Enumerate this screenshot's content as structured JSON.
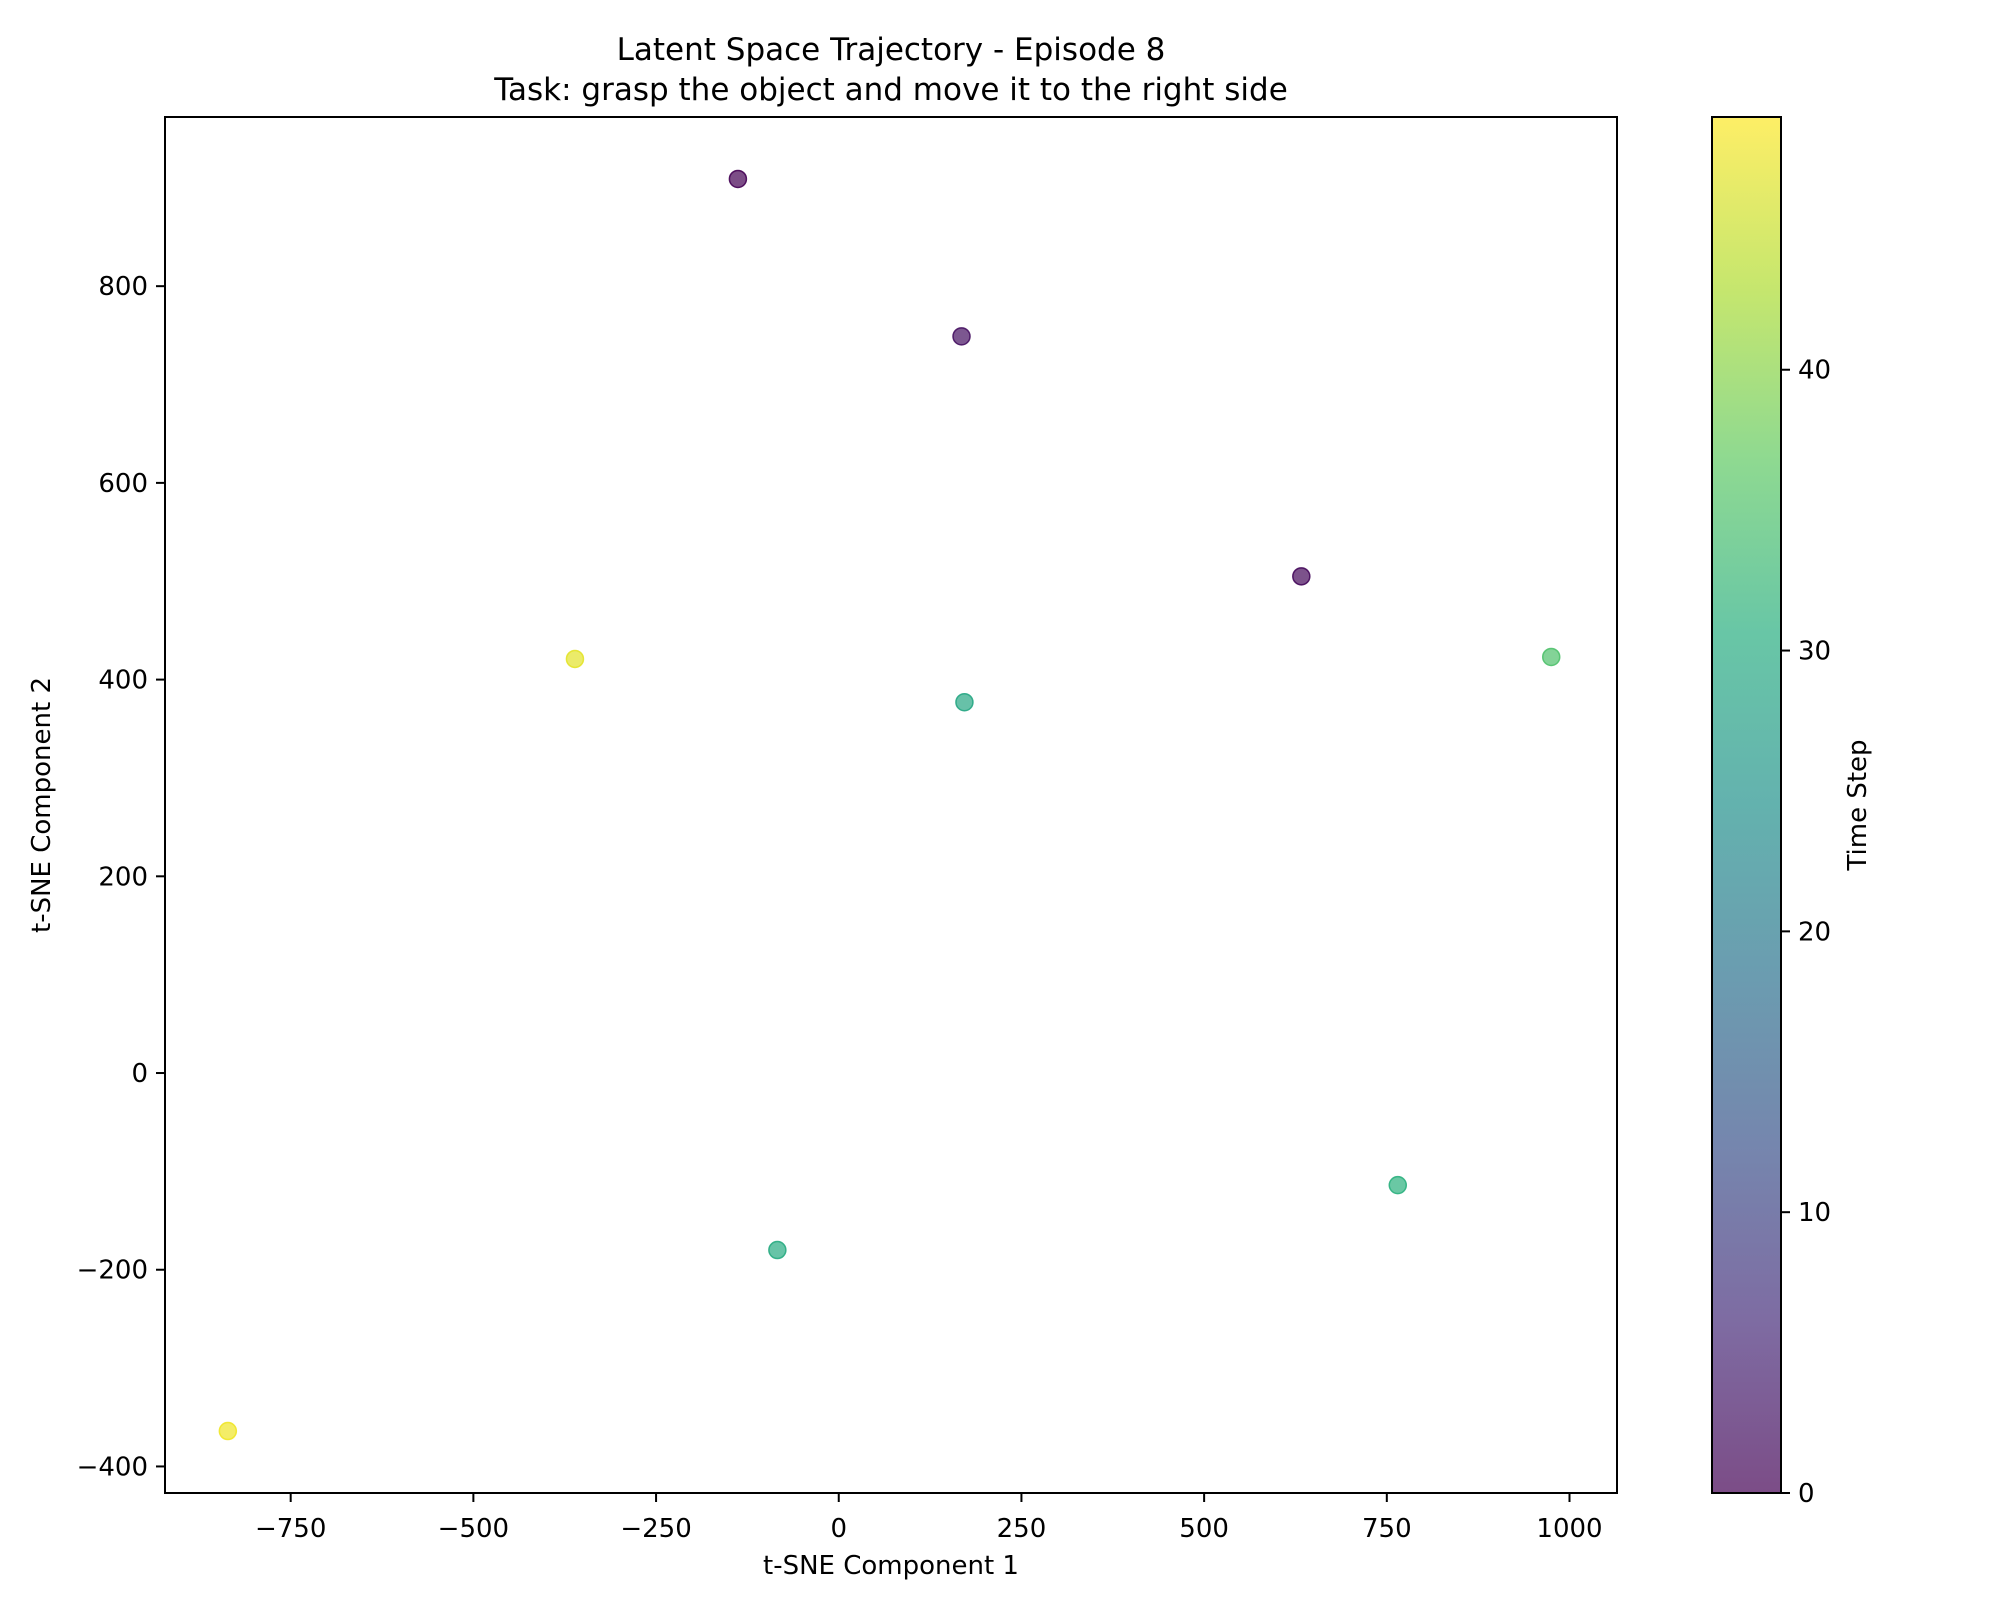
{
  "chart_data": {
    "type": "scatter",
    "title": "Latent Space Trajectory - Episode 8",
    "subtitle": "Task: grasp the object and move it to the right side",
    "xlabel": "t-SNE Component 1",
    "ylabel": "t-SNE Component 2",
    "xlim": [
      -922,
      1065
    ],
    "ylim": [
      -427,
      972
    ],
    "xticks": [
      -750,
      -500,
      -250,
      0,
      250,
      500,
      750,
      1000
    ],
    "xtick_labels": [
      "−750",
      "−500",
      "−250",
      "0",
      "250",
      "500",
      "750",
      "1000"
    ],
    "yticks": [
      -400,
      -200,
      0,
      200,
      400,
      600,
      800
    ],
    "ytick_labels": [
      "−400",
      "−200",
      "0",
      "200",
      "400",
      "600",
      "800"
    ],
    "grid": false,
    "colorbar": {
      "label": "Time Step",
      "range": [
        0,
        49
      ],
      "ticks": [
        0,
        10,
        20,
        30,
        40
      ],
      "tick_labels": [
        "0",
        "10",
        "20",
        "30",
        "40"
      ],
      "colormap": "viridis",
      "alpha": 0.7
    },
    "points": [
      {
        "x": -138,
        "y": 909,
        "t": 0
      },
      {
        "x": 168,
        "y": 749,
        "t": 2
      },
      {
        "x": 633,
        "y": 505,
        "t": 1
      },
      {
        "x": 172,
        "y": 377,
        "t": 29
      },
      {
        "x": 975,
        "y": 423,
        "t": 35
      },
      {
        "x": 765,
        "y": -114,
        "t": 31
      },
      {
        "x": -84,
        "y": -180,
        "t": 30
      },
      {
        "x": -361,
        "y": 421,
        "t": 47
      },
      {
        "x": -836,
        "y": -364,
        "t": 48
      }
    ]
  }
}
